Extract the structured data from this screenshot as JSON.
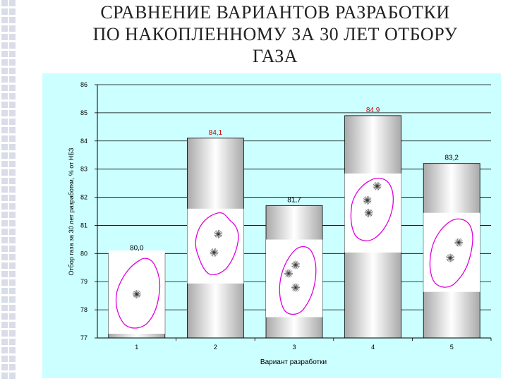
{
  "title_lines": [
    "СРАВНЕНИЕ ВАРИАНТОВ РАЗРАБОТКИ",
    "ПО НАКОПЛЕННОМУ ЗА 30 ЛЕТ ОТБОРУ",
    "ГАЗА"
  ],
  "colors": {
    "panel_bg": "#ccffff",
    "bar_fill": "#cfcfcf",
    "bar_highlight": "#ffffff",
    "deposit_outline": "#e000e0",
    "label_red": "#cc0000"
  },
  "chart_data": {
    "type": "bar",
    "xlabel": "Вариант разработки",
    "ylabel": "Отбор газа за 30 лет разработки, % от НБЗ",
    "ylim": [
      77,
      86
    ],
    "yticks": [
      "77",
      "78",
      "79",
      "80",
      "81",
      "82",
      "83",
      "84",
      "85",
      "86"
    ],
    "grid": "horizontal major gridlines",
    "categories": [
      "1",
      "2",
      "3",
      "4",
      "5"
    ],
    "values": [
      80.0,
      84.1,
      81.7,
      84.9,
      83.2
    ],
    "data_labels": [
      "80,0",
      "84,1",
      "81,7",
      "84,9",
      "83,2"
    ],
    "label_colors": [
      "black",
      "red",
      "black",
      "red",
      "black"
    ]
  }
}
